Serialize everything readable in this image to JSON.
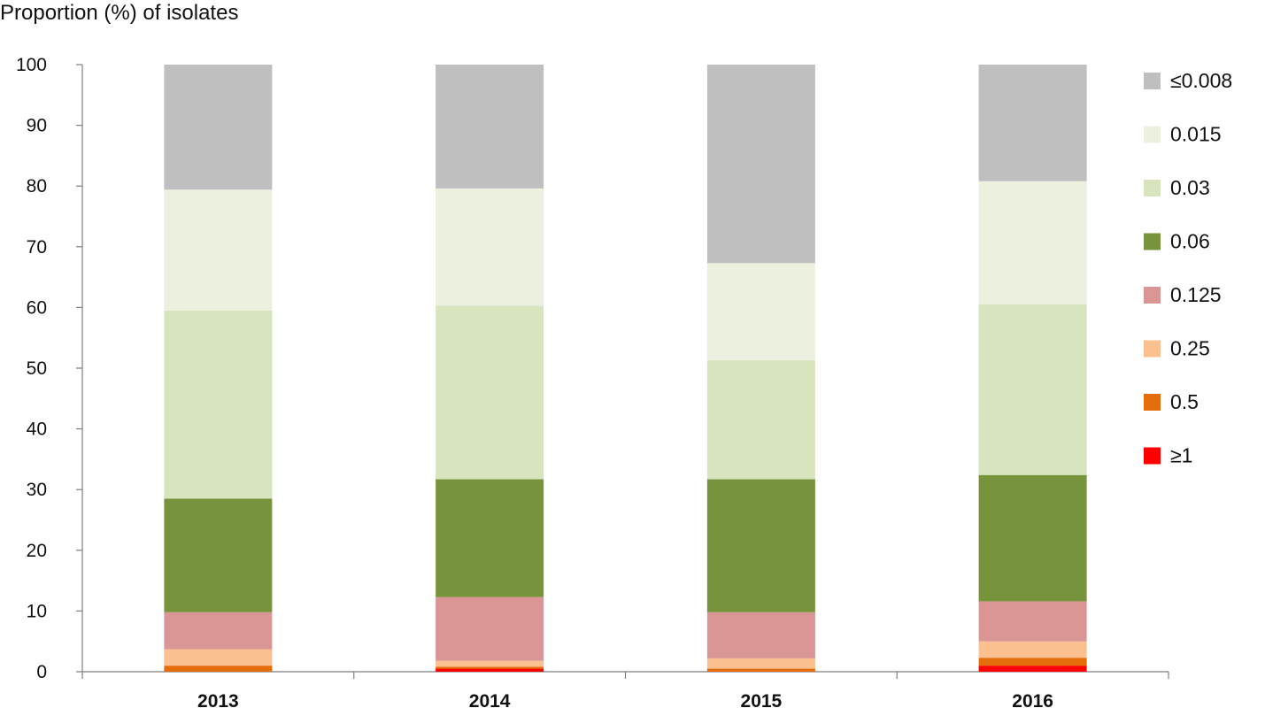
{
  "chart_data": {
    "type": "bar",
    "stacked": true,
    "ylabel": "Proportion (%) of isolates",
    "xlabel": "",
    "ylim": [
      0,
      100
    ],
    "yticks": [
      "0",
      "10",
      "20",
      "30",
      "40",
      "50",
      "60",
      "70",
      "80",
      "90",
      "100"
    ],
    "categories": [
      "2013",
      "2014",
      "2015",
      "2016"
    ],
    "legend_position": "right",
    "series": [
      {
        "name": "≥1",
        "color": "#ff0000",
        "values": [
          0,
          0.5,
          0,
          1.0
        ]
      },
      {
        "name": "0.5",
        "color": "#e46c0a",
        "values": [
          1.0,
          0.3,
          0.5,
          1.3
        ]
      },
      {
        "name": "0.25",
        "color": "#fac090",
        "values": [
          2.7,
          1.0,
          1.7,
          2.7
        ]
      },
      {
        "name": "0.125",
        "color": "#d99694",
        "values": [
          6.1,
          10.5,
          7.6,
          6.6
        ]
      },
      {
        "name": "0.06",
        "color": "#77933c",
        "values": [
          18.7,
          19.4,
          21.9,
          20.8
        ]
      },
      {
        "name": "0.03",
        "color": "#d7e4bd",
        "values": [
          31.0,
          28.6,
          19.6,
          28.1
        ]
      },
      {
        "name": "0.015",
        "color": "#ebf1de",
        "values": [
          19.9,
          19.3,
          16.0,
          20.3
        ]
      },
      {
        "name": "≤0.008",
        "color": "#bfbfbf",
        "values": [
          20.6,
          20.4,
          32.7,
          19.2
        ]
      }
    ]
  }
}
